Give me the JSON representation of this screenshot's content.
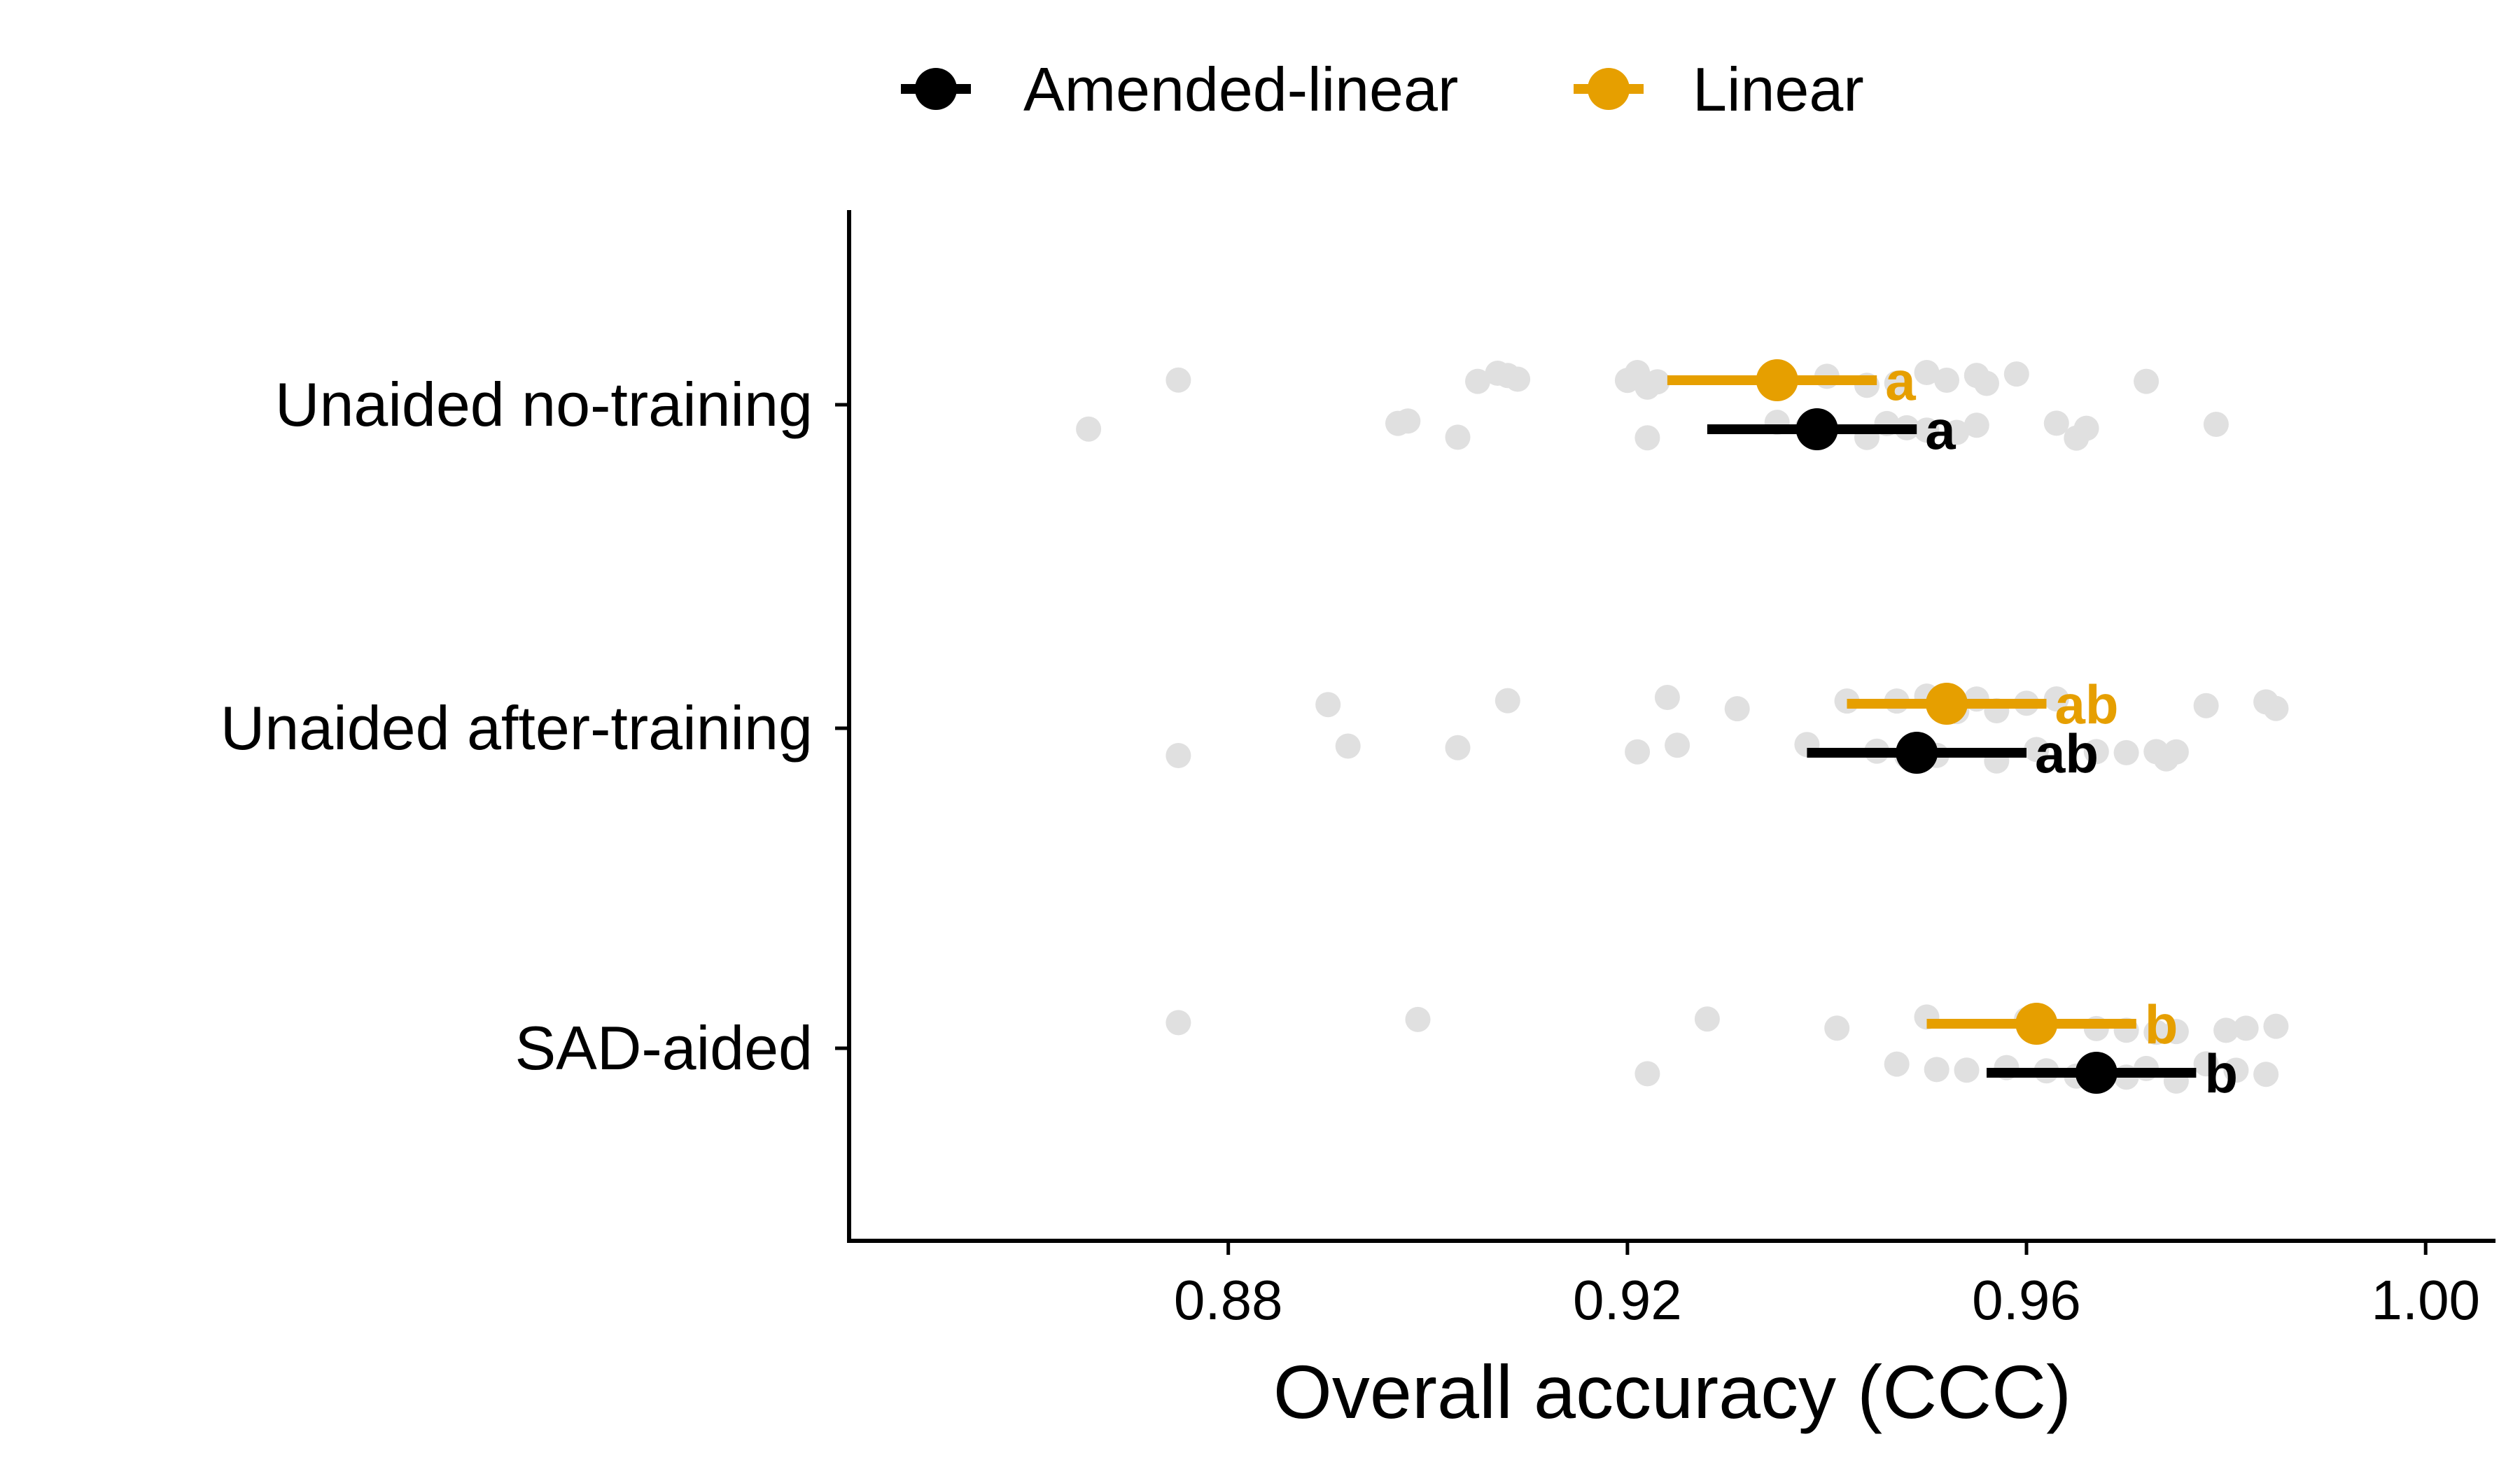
{
  "chart_data": {
    "type": "scatter",
    "xlabel": "Overall accuracy (CCC)",
    "xlim": [
      0.842,
      1.007
    ],
    "x_ticks": [
      "0.88",
      "0.92",
      "0.96",
      "1.00"
    ],
    "x_tick_values": [
      0.88,
      0.92,
      0.96,
      1.0
    ],
    "categories": [
      "Unaided no-training",
      "Unaided after-training",
      "SAD-aided"
    ],
    "legend": {
      "position": "top",
      "entries": [
        {
          "name": "Amended-linear",
          "color": "#000000"
        },
        {
          "name": "Linear",
          "color": "#E69F00"
        }
      ]
    },
    "series": [
      {
        "name": "Amended-linear",
        "color": "#000000",
        "points": [
          {
            "category": "Unaided no-training",
            "mean": 0.939,
            "ci": [
              0.928,
              0.949
            ],
            "letter": "a"
          },
          {
            "category": "Unaided after-training",
            "mean": 0.949,
            "ci": [
              0.938,
              0.96
            ],
            "letter": "ab"
          },
          {
            "category": "SAD-aided",
            "mean": 0.967,
            "ci": [
              0.956,
              0.977
            ],
            "letter": "b"
          }
        ]
      },
      {
        "name": "Linear",
        "color": "#E69F00",
        "points": [
          {
            "category": "Unaided no-training",
            "mean": 0.935,
            "ci": [
              0.924,
              0.945
            ],
            "letter": "a"
          },
          {
            "category": "Unaided after-training",
            "mean": 0.952,
            "ci": [
              0.942,
              0.962
            ],
            "letter": "ab"
          },
          {
            "category": "SAD-aided",
            "mean": 0.961,
            "ci": [
              0.95,
              0.971
            ],
            "letter": "b"
          }
        ]
      }
    ],
    "raw_points_color": "#E0E0E0",
    "raw_points": [
      {
        "category": "Unaided no-training",
        "series": "Linear",
        "values": [
          0.875,
          0.905,
          0.907,
          0.908,
          0.909,
          0.92,
          0.921,
          0.922,
          0.923,
          0.935,
          0.94,
          0.944,
          0.947,
          0.95,
          0.952,
          0.955,
          0.956,
          0.959,
          0.972
        ]
      },
      {
        "category": "Unaided no-training",
        "series": "Amended-linear",
        "values": [
          0.866,
          0.897,
          0.898,
          0.903,
          0.922,
          0.935,
          0.938,
          0.944,
          0.946,
          0.948,
          0.95,
          0.953,
          0.955,
          0.963,
          0.965,
          0.966,
          0.979
        ]
      },
      {
        "category": "Unaided after-training",
        "series": "Linear",
        "values": [
          0.89,
          0.908,
          0.924,
          0.931,
          0.942,
          0.947,
          0.95,
          0.953,
          0.955,
          0.957,
          0.96,
          0.963,
          0.978,
          0.984,
          0.985
        ]
      },
      {
        "category": "Unaided after-training",
        "series": "Amended-linear",
        "values": [
          0.875,
          0.892,
          0.903,
          0.921,
          0.925,
          0.938,
          0.945,
          0.948,
          0.951,
          0.957,
          0.961,
          0.967,
          0.97,
          0.973,
          0.974,
          0.975
        ]
      },
      {
        "category": "SAD-aided",
        "series": "Linear",
        "values": [
          0.875,
          0.899,
          0.928,
          0.941,
          0.95,
          0.96,
          0.967,
          0.97,
          0.973,
          0.975,
          0.98,
          0.982,
          0.985
        ]
      },
      {
        "category": "SAD-aided",
        "series": "Amended-linear",
        "values": [
          0.922,
          0.947,
          0.951,
          0.954,
          0.958,
          0.962,
          0.965,
          0.97,
          0.972,
          0.975,
          0.978,
          0.981,
          0.984
        ]
      }
    ]
  }
}
